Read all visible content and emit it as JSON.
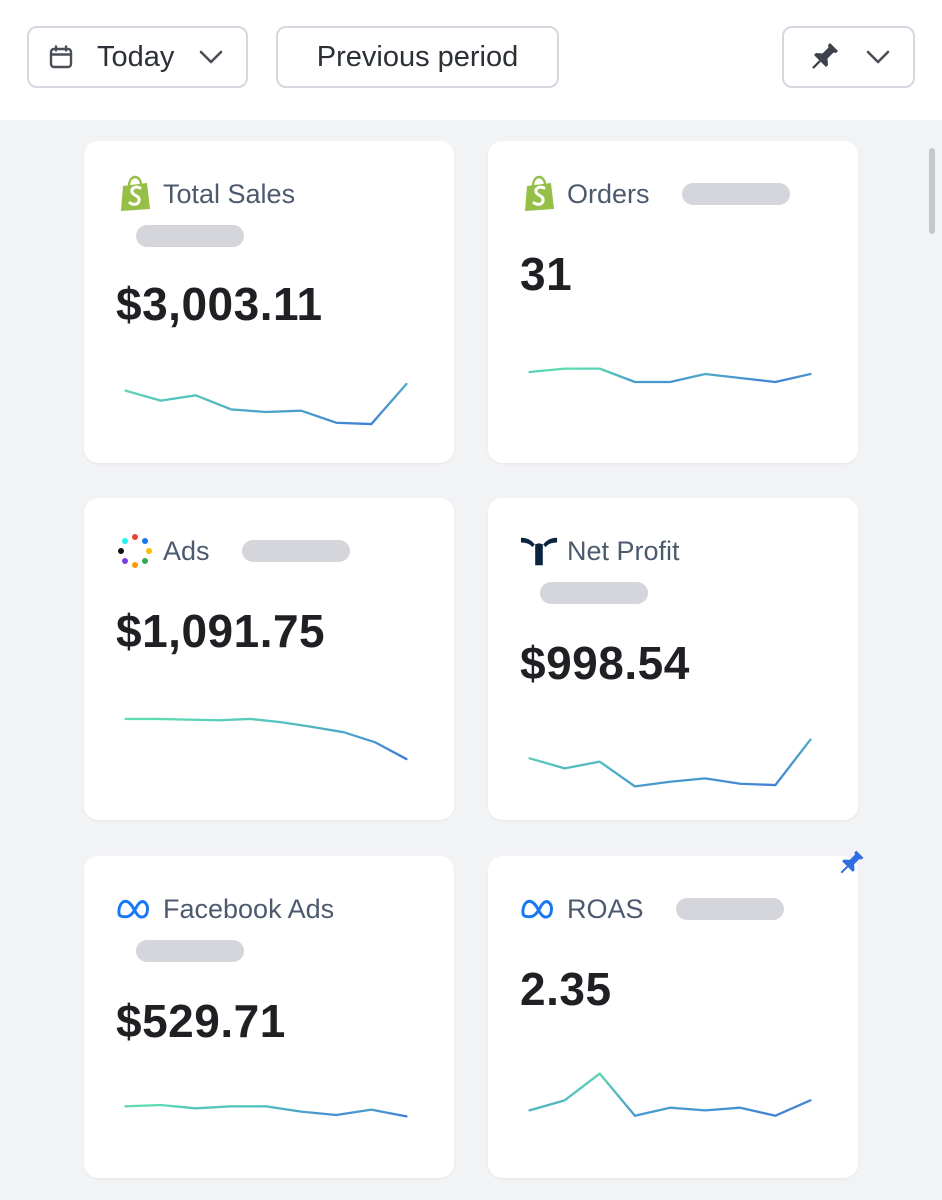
{
  "toolbar": {
    "date_label": "Today",
    "compare_label": "Previous period",
    "icons": {
      "date": "calendar-icon",
      "date_chevron": "chevron-down-icon",
      "pin": "pin-icon",
      "pin_chevron": "chevron-down-icon"
    }
  },
  "colors": {
    "spark_start": "#5fe0b0",
    "spark_end": "#3f7ad9",
    "shopify": "#95bf47",
    "meta": "#1877f2",
    "triple_whale": "#0b2540",
    "pin_accent": "#2f6fe0"
  },
  "cards": [
    {
      "title": "Total Sales",
      "value": "$3,003.11",
      "icon": "shopify-icon",
      "trend": [
        0.3,
        0.45,
        0.37,
        0.58,
        0.62,
        0.6,
        0.78,
        0.8,
        0.2
      ]
    },
    {
      "title": "Orders",
      "value": "31",
      "icon": "shopify-icon",
      "trend": [
        0.35,
        0.3,
        0.3,
        0.5,
        0.5,
        0.38,
        0.44,
        0.5,
        0.38
      ]
    },
    {
      "title": "Ads",
      "value": "$1,091.75",
      "icon": "ads-dots-icon",
      "trend": [
        0.2,
        0.2,
        0.21,
        0.22,
        0.2,
        0.25,
        0.32,
        0.4,
        0.55,
        0.8
      ]
    },
    {
      "title": "Net Profit",
      "value": "$998.54",
      "icon": "triple-whale-icon",
      "trend": [
        0.4,
        0.55,
        0.45,
        0.82,
        0.75,
        0.7,
        0.78,
        0.8,
        0.12
      ]
    },
    {
      "title": "Facebook Ads",
      "value": "$529.71",
      "icon": "meta-icon",
      "trend": [
        0.4,
        0.38,
        0.43,
        0.4,
        0.4,
        0.48,
        0.53,
        0.45,
        0.55
      ]
    },
    {
      "title": "ROAS",
      "value": "2.35",
      "icon": "meta-icon",
      "pinned": true,
      "trend": [
        0.7,
        0.55,
        0.15,
        0.78,
        0.66,
        0.7,
        0.66,
        0.78,
        0.55
      ]
    }
  ]
}
